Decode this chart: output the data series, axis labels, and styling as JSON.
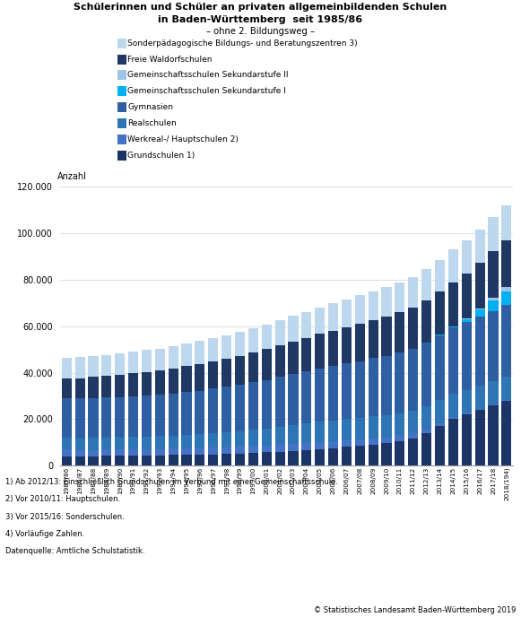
{
  "title_line1": "Schülerinnen und Schüler an privaten allgemeinbildenden Schulen",
  "title_line2": "in Baden-Württemberg  seit 1985/86",
  "title_line3": "– ohne 2. Bildungsweg –",
  "ylabel": "Anzahl",
  "years": [
    "1985/86",
    "1986/87",
    "1987/88",
    "1988/89",
    "1989/90",
    "1990/91",
    "1991/92",
    "1992/93",
    "1993/94",
    "1994/95",
    "1995/96",
    "1996/97",
    "1997/98",
    "1998/99",
    "1999/00",
    "2000/01",
    "2001/02",
    "2002/03",
    "2003/04",
    "2004/05",
    "2005/06",
    "2006/07",
    "2007/08",
    "2008/09",
    "2009/10",
    "2010/11",
    "2011/12",
    "2012/13",
    "2013/14",
    "2014/15",
    "2015/16",
    "2016/17",
    "2017/18",
    "2018/194)"
  ],
  "series": [
    {
      "name": "Grundschulen 1)",
      "color": "#1a3566",
      "values": [
        4200,
        4200,
        4200,
        4300,
        4400,
        4400,
        4500,
        4500,
        4600,
        4700,
        4800,
        4900,
        5100,
        5300,
        5500,
        5800,
        6100,
        6400,
        6800,
        7200,
        7600,
        8100,
        8600,
        9200,
        9800,
        10700,
        11800,
        14000,
        17000,
        20000,
        22000,
        24000,
        26000,
        28000
      ]
    },
    {
      "name": "Werkreal-/ Hauptschulen 2)",
      "color": "#4472c4",
      "values": [
        2800,
        2700,
        2700,
        2700,
        2700,
        2700,
        2700,
        2700,
        2700,
        2800,
        2800,
        2900,
        2900,
        2900,
        3000,
        3000,
        3100,
        3100,
        3100,
        3100,
        3000,
        2900,
        2800,
        2700,
        2600,
        2400,
        2200,
        1800,
        1400,
        1100,
        800,
        600,
        500,
        400
      ]
    },
    {
      "name": "Realschulen",
      "color": "#2e75b6",
      "values": [
        5000,
        5000,
        5100,
        5100,
        5200,
        5300,
        5400,
        5500,
        5600,
        5800,
        6000,
        6200,
        6400,
        6700,
        7000,
        7300,
        7700,
        8000,
        8300,
        8600,
        8900,
        9100,
        9300,
        9400,
        9400,
        9500,
        9600,
        9700,
        9700,
        9700,
        9700,
        9700,
        9700,
        9700
      ]
    },
    {
      "name": "Gymnasien",
      "color": "#2e5fa3",
      "values": [
        17000,
        17000,
        17100,
        17200,
        17300,
        17500,
        17700,
        17900,
        18100,
        18400,
        18700,
        19100,
        19500,
        19900,
        20300,
        20800,
        21300,
        21800,
        22300,
        22800,
        23300,
        23800,
        24300,
        24900,
        25400,
        26000,
        26600,
        27300,
        27900,
        28500,
        29100,
        29700,
        30300,
        31000
      ]
    },
    {
      "name": "Gemeinschaftsschulen Sekundarstufe I",
      "color": "#00b0f0",
      "values": [
        0,
        0,
        0,
        0,
        0,
        0,
        0,
        0,
        0,
        0,
        0,
        0,
        0,
        0,
        0,
        0,
        0,
        0,
        0,
        0,
        0,
        0,
        0,
        0,
        0,
        0,
        0,
        0,
        200,
        600,
        1500,
        3000,
        4500,
        5800
      ]
    },
    {
      "name": "Gemeinschaftsschulen Sekundarstufe II",
      "color": "#9dc3e6",
      "values": [
        0,
        0,
        0,
        0,
        0,
        0,
        0,
        0,
        0,
        0,
        0,
        0,
        0,
        0,
        0,
        0,
        0,
        0,
        0,
        0,
        0,
        0,
        0,
        0,
        0,
        0,
        0,
        0,
        0,
        100,
        300,
        700,
        1300,
        1800
      ]
    },
    {
      "name": "Freie Waldorfschulen",
      "color": "#1f3864",
      "values": [
        8500,
        8800,
        9000,
        9200,
        9500,
        9800,
        10100,
        10400,
        10700,
        11100,
        11400,
        11800,
        12100,
        12500,
        12900,
        13300,
        13700,
        14100,
        14500,
        14900,
        15300,
        15700,
        16100,
        16500,
        16900,
        17300,
        17700,
        18100,
        18500,
        18900,
        19200,
        19600,
        20000,
        20300
      ]
    },
    {
      "name": "Sonderpädagogische Bildungs- und Beratungszentren 3)",
      "color": "#bdd7ee",
      "values": [
        9000,
        9100,
        9200,
        9200,
        9200,
        9300,
        9400,
        9400,
        9600,
        9700,
        9800,
        9900,
        10100,
        10200,
        10400,
        10600,
        10800,
        11000,
        11200,
        11400,
        11600,
        11800,
        12100,
        12300,
        12600,
        12800,
        13100,
        13400,
        13700,
        13900,
        14100,
        14300,
        14500,
        14700
      ]
    }
  ],
  "footnotes": [
    "1) Ab 2012/13: Einschließlich Grundschulen im Verbund mit einer Gemeinschaftsschule.",
    "2) Vor 2010/11: Hauptschulen.",
    "3) Vor 2015/16: Sonderschulen.",
    "4) Vorläufige Zahlen.",
    "Datenquelle: Amtliche Schulstatistik."
  ],
  "copyright": "© Statistisches Landesamt Baden-Württemberg 2019",
  "ylim": [
    0,
    120000
  ],
  "yticks": [
    0,
    20000,
    40000,
    60000,
    80000,
    100000,
    120000
  ],
  "background_color": "#ffffff"
}
